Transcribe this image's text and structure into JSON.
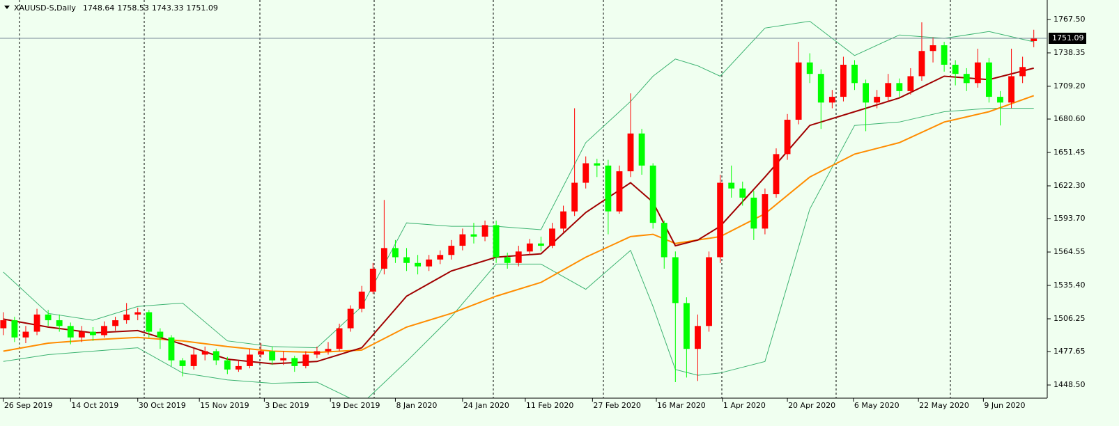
{
  "chart_data": {
    "type": "candlestick",
    "title": "XAUUSD-S,Daily",
    "up_color": "#ff0000",
    "down_color": "#00ff00",
    "open": [
      1498,
      1505,
      1490,
      1495,
      1510,
      1505,
      1500,
      1490,
      1495,
      1492,
      1500,
      1505,
      1510,
      1512,
      1495,
      1490,
      1470,
      1465,
      1475,
      1478,
      1470,
      1462,
      1465,
      1475,
      1478,
      1470,
      1472,
      1465,
      1475,
      1478,
      1480,
      1498,
      1515,
      1530,
      1550,
      1568,
      1560,
      1555,
      1552,
      1558,
      1562,
      1570,
      1580,
      1578,
      1588,
      1560,
      1555,
      1565,
      1572,
      1570,
      1585,
      1600,
      1625,
      1642,
      1640,
      1600,
      1635,
      1668,
      1640,
      1590,
      1560,
      1520,
      1480,
      1500,
      1560,
      1625,
      1620,
      1612,
      1585,
      1615,
      1650,
      1680,
      1730,
      1720,
      1695,
      1700,
      1728,
      1712,
      1695,
      1700,
      1712,
      1705,
      1718,
      1740,
      1745,
      1728,
      1720,
      1712,
      1730,
      1700,
      1695,
      1718,
      1748.64
    ],
    "high": [
      1512,
      1508,
      1500,
      1515,
      1514,
      1510,
      1503,
      1500,
      1499,
      1504,
      1508,
      1520,
      1516,
      1514,
      1498,
      1492,
      1472,
      1480,
      1482,
      1480,
      1473,
      1470,
      1480,
      1485,
      1482,
      1478,
      1474,
      1478,
      1482,
      1486,
      1502,
      1518,
      1535,
      1555,
      1610,
      1575,
      1568,
      1562,
      1562,
      1566,
      1575,
      1585,
      1590,
      1592,
      1592,
      1564,
      1570,
      1576,
      1578,
      1590,
      1605,
      1690,
      1648,
      1646,
      1645,
      1640,
      1703,
      1672,
      1642,
      1592,
      1565,
      1525,
      1510,
      1565,
      1632,
      1640,
      1626,
      1618,
      1620,
      1655,
      1685,
      1748,
      1738,
      1724,
      1706,
      1735,
      1732,
      1715,
      1706,
      1720,
      1716,
      1725,
      1765,
      1752,
      1748,
      1732,
      1725,
      1742,
      1734,
      1705,
      1742,
      1735,
      1758.53
    ],
    "low": [
      1492,
      1486,
      1485,
      1492,
      1500,
      1495,
      1484,
      1486,
      1487,
      1490,
      1496,
      1502,
      1505,
      1490,
      1480,
      1465,
      1456,
      1462,
      1470,
      1466,
      1458,
      1460,
      1463,
      1472,
      1466,
      1466,
      1460,
      1463,
      1472,
      1475,
      1478,
      1495,
      1512,
      1528,
      1545,
      1555,
      1548,
      1545,
      1548,
      1554,
      1558,
      1566,
      1572,
      1574,
      1555,
      1550,
      1552,
      1562,
      1565,
      1568,
      1582,
      1596,
      1620,
      1630,
      1580,
      1598,
      1630,
      1632,
      1585,
      1550,
      1451,
      1455,
      1452,
      1495,
      1555,
      1612,
      1605,
      1575,
      1580,
      1612,
      1645,
      1676,
      1712,
      1672,
      1690,
      1696,
      1706,
      1670,
      1690,
      1696,
      1700,
      1702,
      1714,
      1730,
      1722,
      1710,
      1705,
      1708,
      1695,
      1675,
      1690,
      1712,
      1743.33
    ],
    "close": [
      1505,
      1490,
      1495,
      1510,
      1505,
      1500,
      1490,
      1495,
      1492,
      1500,
      1505,
      1510,
      1512,
      1495,
      1490,
      1470,
      1465,
      1475,
      1478,
      1470,
      1462,
      1465,
      1475,
      1478,
      1470,
      1472,
      1465,
      1475,
      1478,
      1480,
      1498,
      1515,
      1530,
      1550,
      1568,
      1560,
      1555,
      1552,
      1558,
      1562,
      1570,
      1580,
      1578,
      1588,
      1560,
      1555,
      1565,
      1572,
      1570,
      1585,
      1600,
      1625,
      1642,
      1640,
      1600,
      1635,
      1668,
      1640,
      1590,
      1560,
      1520,
      1480,
      1500,
      1560,
      1625,
      1620,
      1612,
      1585,
      1615,
      1650,
      1680,
      1730,
      1720,
      1695,
      1700,
      1728,
      1712,
      1695,
      1700,
      1712,
      1705,
      1718,
      1740,
      1745,
      1728,
      1720,
      1712,
      1730,
      1700,
      1695,
      1718,
      1726,
      1751.09
    ],
    "indicator_x": [
      0,
      4,
      8,
      12,
      16,
      20,
      24,
      28,
      32,
      36,
      40,
      44,
      48,
      52,
      56,
      58,
      60,
      62,
      64,
      68,
      72,
      76,
      80,
      84,
      88,
      92
    ],
    "lines": [
      {
        "color": "#3cb371",
        "values": [
          1547,
          1511,
          1505,
          1517,
          1520,
          1487,
          1482,
          1481,
          1517,
          1590,
          1587,
          1587,
          1584,
          1660,
          1696,
          1718,
          1733,
          1727,
          1718,
          1760,
          1766,
          1736,
          1754,
          1751,
          1757,
          1748
        ]
      },
      {
        "color": "#3cb371",
        "values": [
          1469,
          1475,
          1478,
          1481,
          1459,
          1453,
          1450,
          1451,
          1432,
          1469,
          1508,
          1554,
          1554,
          1532,
          1566,
          1517,
          1462,
          1457,
          1459,
          1469,
          1602,
          1675,
          1678,
          1687,
          1690,
          1690
        ]
      },
      {
        "color": "#ff8c00",
        "values": [
          1478,
          1485,
          1488,
          1490,
          1487,
          1482,
          1478,
          1477,
          1479,
          1499,
          1511,
          1526,
          1538,
          1560,
          1578,
          1580,
          1572,
          1575,
          1578,
          1598,
          1630,
          1650,
          1660,
          1678,
          1687,
          1701
        ]
      },
      {
        "color": "#a00000",
        "values": [
          1506,
          1499,
          1494,
          1496,
          1484,
          1471,
          1467,
          1469,
          1481,
          1526,
          1548,
          1560,
          1563,
          1599,
          1625,
          1608,
          1570,
          1575,
          1587,
          1630,
          1675,
          1687,
          1699,
          1718,
          1715,
          1725
        ]
      }
    ],
    "xlim": [
      -0.3,
      93.2
    ],
    "ylim": [
      1437.0,
      1784.5
    ],
    "yticks": [
      {
        "value": 1767.5,
        "label": "1767.50"
      },
      {
        "value": 1738.35,
        "label": "1738.35"
      },
      {
        "value": 1709.2,
        "label": "1709.20"
      },
      {
        "value": 1680.6,
        "label": "1680.60"
      },
      {
        "value": 1651.45,
        "label": "1651.45"
      },
      {
        "value": 1622.3,
        "label": "1622.30"
      },
      {
        "value": 1593.7,
        "label": "1593.70"
      },
      {
        "value": 1564.55,
        "label": "1564.55"
      },
      {
        "value": 1535.4,
        "label": "1535.40"
      },
      {
        "value": 1506.25,
        "label": "1506.25"
      },
      {
        "value": 1477.65,
        "label": "1477.65"
      },
      {
        "value": 1448.5,
        "label": "1448.50"
      }
    ],
    "xticks": [
      {
        "value": 0,
        "label": "26 Sep 2019"
      },
      {
        "value": 6,
        "label": "14 Oct 2019"
      },
      {
        "value": 12,
        "label": "30 Oct 2019"
      },
      {
        "value": 17.5,
        "label": "15 Nov 2019"
      },
      {
        "value": 23.3,
        "label": "3 Dec 2019"
      },
      {
        "value": 29.2,
        "label": "19 Dec 2019"
      },
      {
        "value": 35,
        "label": "8 Jan 2020"
      },
      {
        "value": 41,
        "label": "24 Jan 2020"
      },
      {
        "value": 46.6,
        "label": "11 Feb 2020"
      },
      {
        "value": 52.6,
        "label": "27 Feb 2020"
      },
      {
        "value": 58.3,
        "label": "16 Mar 2020"
      },
      {
        "value": 64.2,
        "label": "1 Apr 2020"
      },
      {
        "value": 70,
        "label": "20 Apr 2020"
      },
      {
        "value": 75.9,
        "label": "6 May 2020"
      },
      {
        "value": 81.7,
        "label": "22 May 2020"
      },
      {
        "value": 87.5,
        "label": "9 Jun 2020"
      }
    ]
  }
}
